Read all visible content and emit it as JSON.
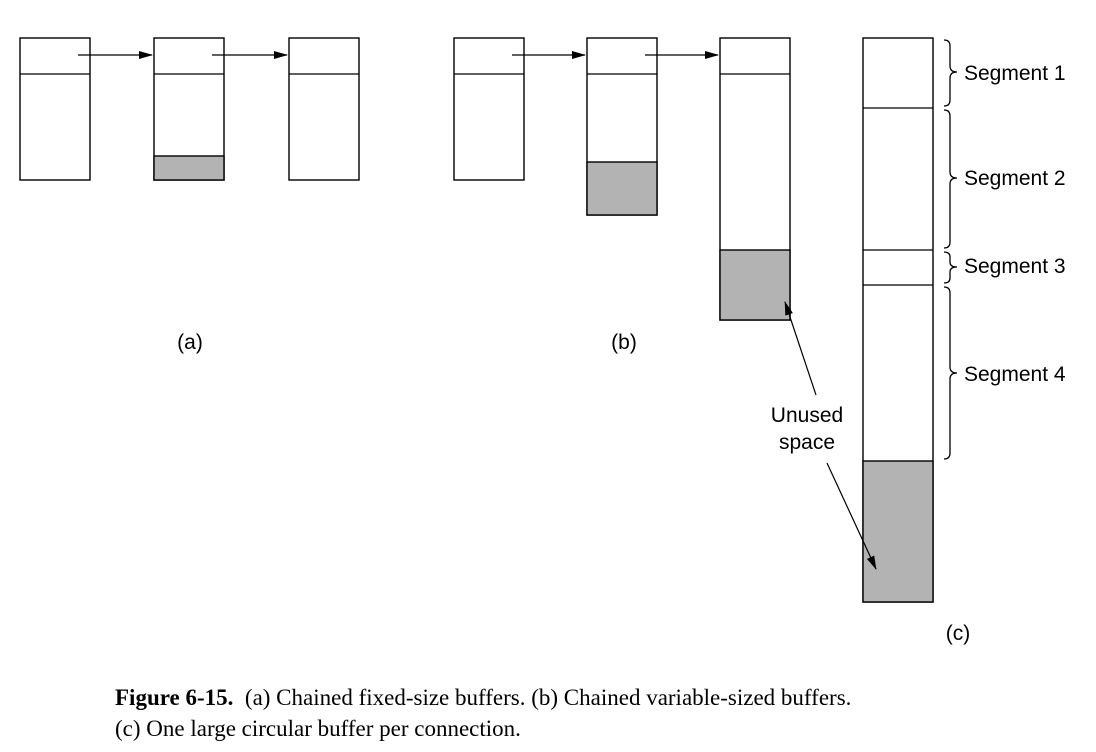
{
  "panels": {
    "a": {
      "label": "(a)"
    },
    "b": {
      "label": "(b)"
    },
    "c": {
      "label": "(c)"
    }
  },
  "segments": [
    "Segment 1",
    "Segment 2",
    "Segment 3",
    "Segment 4"
  ],
  "annotation": {
    "line1": "Unused",
    "line2": "space"
  },
  "caption": {
    "figure": "Figure 6-15.",
    "line1": "(a) Chained fixed-size buffers.  (b) Chained variable-sized buffers.",
    "line2": "(c) One large circular buffer per connection."
  },
  "colors": {
    "unused": "#b3b3b3",
    "stroke": "#000000"
  }
}
